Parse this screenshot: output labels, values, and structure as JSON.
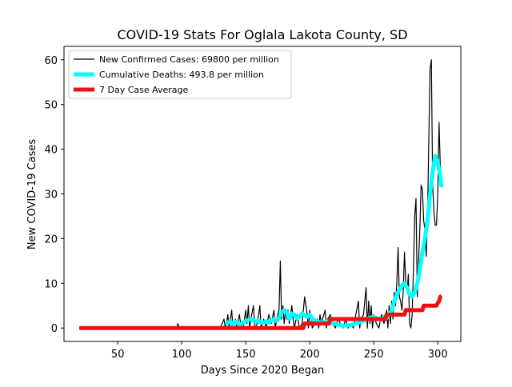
{
  "chart_data": {
    "type": "line",
    "title": "COVID-19 Stats For Oglala Lakota County, SD",
    "xlabel": "Days Since 2020 Began",
    "ylabel": "New COVID-19 Cases",
    "xlim": [
      8,
      318
    ],
    "ylim": [
      -3,
      63
    ],
    "xticks": [
      50,
      100,
      150,
      200,
      250,
      300
    ],
    "yticks": [
      0,
      10,
      20,
      30,
      40,
      50,
      60
    ],
    "grid": false,
    "legend_position": "upper-left",
    "series": [
      {
        "name": "New Confirmed Cases: 69800 per million",
        "color": "#000000",
        "points": [
          [
            20,
            0
          ],
          [
            60,
            0
          ],
          [
            96,
            0
          ],
          [
            97,
            1
          ],
          [
            98,
            0
          ],
          [
            130,
            0
          ],
          [
            133,
            2
          ],
          [
            134,
            0
          ],
          [
            135,
            1
          ],
          [
            136,
            3
          ],
          [
            137,
            0
          ],
          [
            139,
            4
          ],
          [
            140,
            0
          ],
          [
            142,
            2
          ],
          [
            143,
            0
          ],
          [
            145,
            3
          ],
          [
            146,
            1
          ],
          [
            148,
            0
          ],
          [
            150,
            4
          ],
          [
            151,
            1
          ],
          [
            152,
            5
          ],
          [
            153,
            0
          ],
          [
            154,
            2
          ],
          [
            156,
            5
          ],
          [
            157,
            0
          ],
          [
            159,
            1
          ],
          [
            160,
            3
          ],
          [
            161,
            5
          ],
          [
            162,
            0
          ],
          [
            164,
            2
          ],
          [
            166,
            0
          ],
          [
            168,
            3
          ],
          [
            170,
            1
          ],
          [
            172,
            4
          ],
          [
            173,
            0
          ],
          [
            175,
            3
          ],
          [
            176,
            4
          ],
          [
            177,
            15
          ],
          [
            178,
            2
          ],
          [
            179,
            5
          ],
          [
            180,
            1
          ],
          [
            181,
            4
          ],
          [
            182,
            2
          ],
          [
            183,
            4
          ],
          [
            184,
            1
          ],
          [
            185,
            3
          ],
          [
            186,
            5
          ],
          [
            187,
            2
          ],
          [
            188,
            0
          ],
          [
            190,
            3
          ],
          [
            192,
            0
          ],
          [
            194,
            1
          ],
          [
            196,
            7
          ],
          [
            197,
            5
          ],
          [
            198,
            3
          ],
          [
            199,
            0
          ],
          [
            200,
            4
          ],
          [
            201,
            2
          ],
          [
            202,
            0
          ],
          [
            204,
            1
          ],
          [
            206,
            2
          ],
          [
            207,
            0
          ],
          [
            208,
            3
          ],
          [
            209,
            1
          ],
          [
            210,
            2
          ],
          [
            212,
            4
          ],
          [
            213,
            0
          ],
          [
            214,
            2
          ],
          [
            216,
            3
          ],
          [
            218,
            1
          ],
          [
            220,
            0
          ],
          [
            222,
            2
          ],
          [
            224,
            1
          ],
          [
            226,
            0
          ],
          [
            228,
            2
          ],
          [
            230,
            0
          ],
          [
            232,
            1
          ],
          [
            234,
            0
          ],
          [
            236,
            3
          ],
          [
            238,
            6
          ],
          [
            239,
            0
          ],
          [
            240,
            2
          ],
          [
            242,
            3
          ],
          [
            244,
            9
          ],
          [
            245,
            0
          ],
          [
            246,
            6
          ],
          [
            247,
            1
          ],
          [
            248,
            5
          ],
          [
            249,
            0
          ],
          [
            250,
            3
          ],
          [
            252,
            1
          ],
          [
            254,
            0
          ],
          [
            256,
            3
          ],
          [
            258,
            1
          ],
          [
            260,
            4
          ],
          [
            261,
            0
          ],
          [
            262,
            5
          ],
          [
            263,
            1
          ],
          [
            264,
            6
          ],
          [
            265,
            2
          ],
          [
            266,
            8
          ],
          [
            267,
            5
          ],
          [
            268,
            10
          ],
          [
            269,
            18
          ],
          [
            270,
            7
          ],
          [
            271,
            6
          ],
          [
            272,
            4
          ],
          [
            273,
            8
          ],
          [
            274,
            17
          ],
          [
            275,
            10
          ],
          [
            276,
            8
          ],
          [
            277,
            12
          ],
          [
            278,
            1
          ],
          [
            279,
            0
          ],
          [
            280,
            3
          ],
          [
            281,
            13
          ],
          [
            282,
            25
          ],
          [
            283,
            29
          ],
          [
            284,
            7
          ],
          [
            285,
            15
          ],
          [
            286,
            22
          ],
          [
            287,
            32
          ],
          [
            288,
            31
          ],
          [
            289,
            24
          ],
          [
            290,
            22
          ],
          [
            291,
            16
          ],
          [
            292,
            25
          ],
          [
            293,
            42
          ],
          [
            294,
            58
          ],
          [
            295,
            60
          ],
          [
            296,
            32
          ],
          [
            297,
            26
          ],
          [
            298,
            23
          ],
          [
            299,
            23
          ],
          [
            300,
            30
          ],
          [
            301,
            46
          ],
          [
            302,
            36
          ],
          [
            303,
            32
          ]
        ]
      },
      {
        "name": "Cumulative Deaths: 493.8 per million",
        "color": "#00ffff",
        "points": [
          [
            134,
            1
          ],
          [
            136,
            1.2
          ],
          [
            138,
            1.5
          ],
          [
            140,
            0.8
          ],
          [
            142,
            1.4
          ],
          [
            144,
            1
          ],
          [
            146,
            0.8
          ],
          [
            148,
            1.2
          ],
          [
            150,
            1.6
          ],
          [
            152,
            1.8
          ],
          [
            154,
            2
          ],
          [
            156,
            1.6
          ],
          [
            158,
            1.5
          ],
          [
            160,
            1.7
          ],
          [
            162,
            1.2
          ],
          [
            164,
            1.3
          ],
          [
            166,
            1.5
          ],
          [
            168,
            1.2
          ],
          [
            170,
            1.7
          ],
          [
            172,
            2
          ],
          [
            174,
            1.6
          ],
          [
            176,
            2.2
          ],
          [
            178,
            3.5
          ],
          [
            180,
            4
          ],
          [
            182,
            3.5
          ],
          [
            184,
            2
          ],
          [
            186,
            3.2
          ],
          [
            188,
            3
          ],
          [
            190,
            2.2
          ],
          [
            192,
            2.5
          ],
          [
            194,
            3.3
          ],
          [
            196,
            2.8
          ],
          [
            198,
            2.5
          ],
          [
            200,
            3
          ],
          [
            202,
            2
          ],
          [
            206,
            1.4
          ],
          [
            210,
            1.2
          ],
          [
            214,
            1.5
          ],
          [
            218,
            1
          ],
          [
            222,
            0.8
          ],
          [
            226,
            0.5
          ],
          [
            230,
            0.6
          ],
          [
            234,
            0.8
          ],
          [
            238,
            1.2
          ],
          [
            242,
            1.6
          ],
          [
            246,
            2.2
          ],
          [
            250,
            2.5
          ],
          [
            254,
            2
          ],
          [
            256,
            1.8
          ],
          [
            258,
            2.5
          ],
          [
            260,
            2.2
          ],
          [
            262,
            3
          ],
          [
            264,
            4
          ],
          [
            266,
            6
          ],
          [
            268,
            7.5
          ],
          [
            270,
            8.5
          ],
          [
            272,
            9.5
          ],
          [
            274,
            10
          ],
          [
            276,
            9
          ],
          [
            278,
            7.5
          ],
          [
            280,
            7
          ],
          [
            282,
            8
          ],
          [
            284,
            10
          ],
          [
            286,
            13
          ],
          [
            288,
            17
          ],
          [
            290,
            20
          ],
          [
            292,
            24
          ],
          [
            294,
            30
          ],
          [
            296,
            35
          ],
          [
            298,
            38.5
          ],
          [
            300,
            37
          ],
          [
            302,
            34
          ],
          [
            303,
            31.5
          ]
        ]
      },
      {
        "name": "7 Day Case Average",
        "color": "#ee1111",
        "points": [
          [
            20,
            0
          ],
          [
            195,
            0
          ],
          [
            196,
            1
          ],
          [
            215,
            1
          ],
          [
            216,
            2
          ],
          [
            259,
            2
          ],
          [
            260,
            3
          ],
          [
            274,
            3
          ],
          [
            275,
            4
          ],
          [
            288,
            4
          ],
          [
            289,
            5
          ],
          [
            299,
            5
          ],
          [
            300,
            5.6
          ],
          [
            301,
            6
          ],
          [
            302,
            7
          ],
          [
            303,
            7.2
          ]
        ]
      }
    ]
  }
}
